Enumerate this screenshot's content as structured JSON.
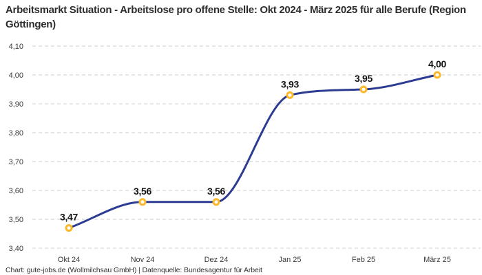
{
  "title": "Arbeitsmarkt Situation - Arbeitslose pro offene Stelle: Okt 2024 - März 2025 für alle Berufe (Region Göttingen)",
  "footer": "Chart: gute-jobs.de (Wollmilchsau GmbH) | Datenquelle: Bundesagentur für Arbeit",
  "chart_data": {
    "type": "line",
    "title": "Arbeitsmarkt Situation - Arbeitslose pro offene Stelle: Okt 2024 - März 2025 für alle Berufe (Region Göttingen)",
    "categories": [
      "Okt 24",
      "Nov 24",
      "Dez 24",
      "Jan 25",
      "Feb 25",
      "März 25"
    ],
    "series": [
      {
        "name": "Arbeitslose pro offene Stelle",
        "values": [
          3.47,
          3.56,
          3.56,
          3.93,
          3.95,
          4.0
        ],
        "value_labels": [
          "3,47",
          "3,56",
          "3,56",
          "3,93",
          "3,95",
          "4,00"
        ]
      }
    ],
    "xlabel": "",
    "ylabel": "",
    "ylim": [
      3.4,
      4.1
    ],
    "y_ticks": [
      {
        "value": 4.1,
        "label": "4,10"
      },
      {
        "value": 4.0,
        "label": "4,00"
      },
      {
        "value": 3.9,
        "label": "3,90"
      },
      {
        "value": 3.8,
        "label": "3,80"
      },
      {
        "value": 3.7,
        "label": "3,70"
      },
      {
        "value": 3.6,
        "label": "3,60"
      },
      {
        "value": 3.5,
        "label": "3,50"
      },
      {
        "value": 3.4,
        "label": "3,40"
      }
    ],
    "grid": "horizontal-dashed",
    "legend": "none",
    "colors": {
      "line": "#2b3c92",
      "marker_stroke": "#fcb826",
      "marker_fill": "#ffffff",
      "grid": "#cccccc",
      "data_label": "#141414",
      "axis_text": "#3a3a3a",
      "title_text": "#2d2d2d",
      "background": "#ffffff"
    }
  }
}
